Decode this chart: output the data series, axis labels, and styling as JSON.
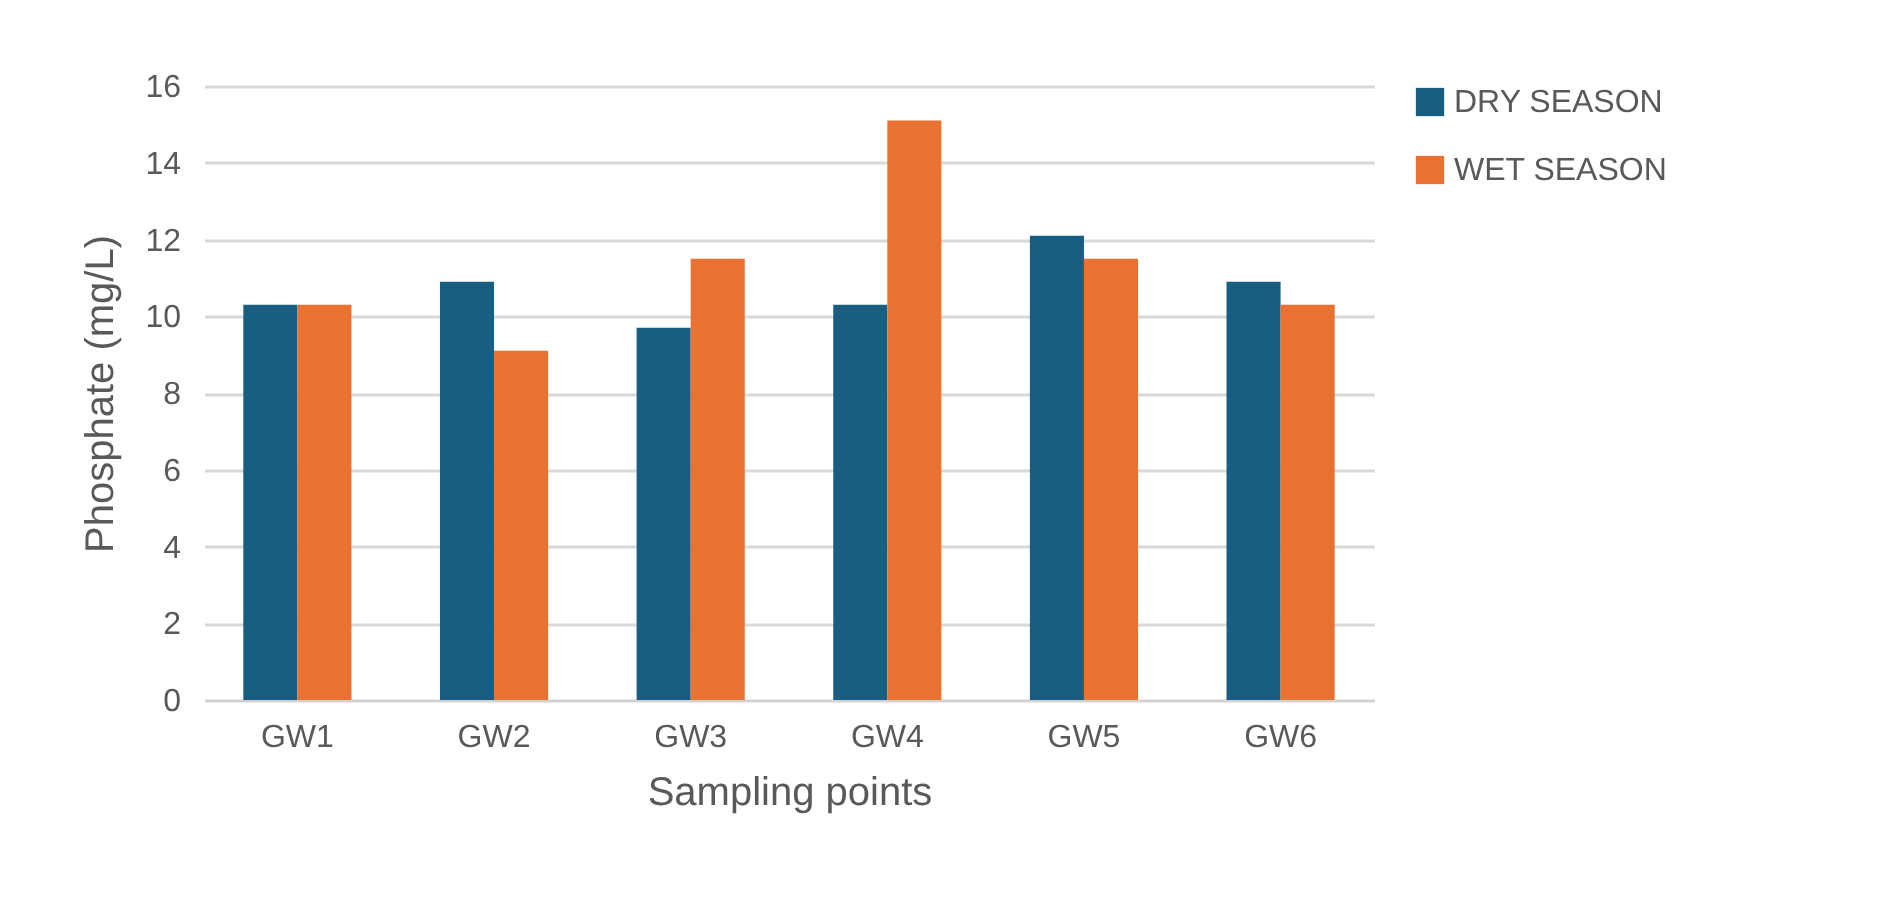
{
  "chart_data": {
    "type": "bar",
    "xlabel": "Sampling points",
    "ylabel": "Phosphate (mg/L)",
    "categories": [
      "GW1",
      "GW2",
      "GW3",
      "GW4",
      "GW5",
      "GW6"
    ],
    "series": [
      {
        "name": "DRY SEASON",
        "color": "#175e82",
        "values": [
          10.3,
          10.9,
          9.7,
          10.3,
          12.1,
          10.9
        ]
      },
      {
        "name": "WET SEASON",
        "color": "#e97132",
        "values": [
          10.3,
          9.1,
          11.5,
          15.1,
          11.5,
          10.3
        ]
      }
    ],
    "ylim": [
      0,
      16
    ],
    "yticks": [
      0,
      2,
      4,
      6,
      8,
      10,
      12,
      14,
      16
    ],
    "grid": "y",
    "legend": "right"
  }
}
